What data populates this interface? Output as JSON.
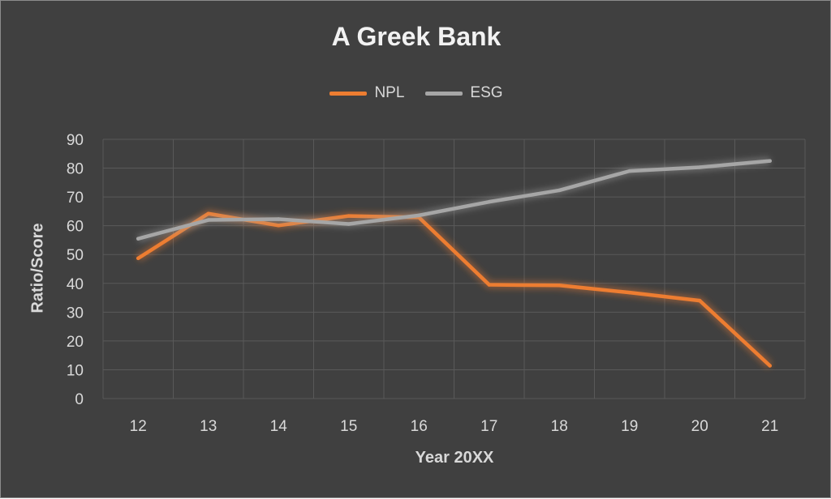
{
  "chart_data": {
    "type": "line",
    "title": "A Greek Bank",
    "xlabel": "Year 20XX",
    "ylabel": "Ratio/Score",
    "categories": [
      "12",
      "13",
      "14",
      "15",
      "16",
      "17",
      "18",
      "19",
      "20",
      "21"
    ],
    "ylim": [
      0,
      90
    ],
    "yticks": [
      0,
      10,
      20,
      30,
      40,
      50,
      60,
      70,
      80,
      90
    ],
    "grid": true,
    "legend": "top-center",
    "series": [
      {
        "name": "NPL",
        "color": "#ed7d31",
        "values": [
          48.7,
          64.2,
          60.1,
          63.4,
          62.9,
          39.5,
          39.3,
          36.8,
          34.0,
          11.4
        ]
      },
      {
        "name": "ESG",
        "color": "#a6a6a6",
        "values": [
          55.5,
          62.0,
          62.3,
          60.6,
          63.6,
          68.3,
          72.3,
          79.0,
          80.3,
          82.5
        ]
      }
    ]
  },
  "colors": {
    "background": "#404040",
    "text": "#d9d9d9",
    "title": "#f2f2f2",
    "grid": "#595959"
  }
}
